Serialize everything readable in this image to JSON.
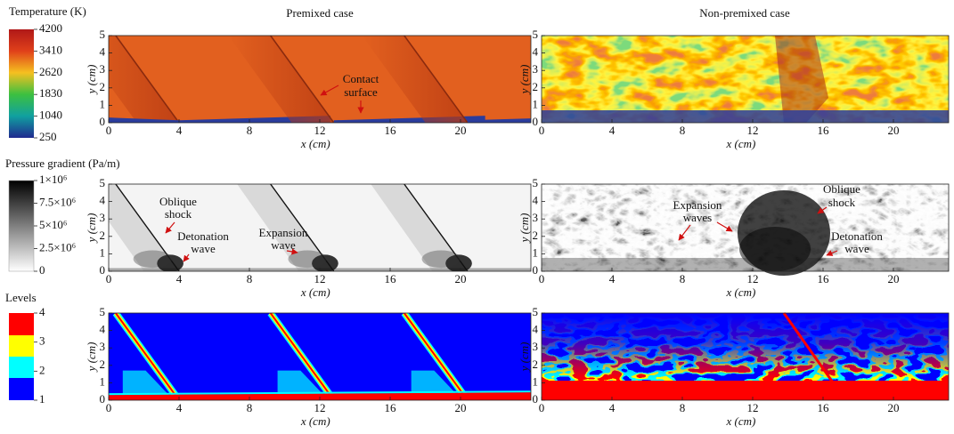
{
  "colorbars": [
    {
      "title": "Temperature (K)",
      "ticks": [
        "4200",
        "3410",
        "2620",
        "1830",
        "1040",
        "250"
      ]
    },
    {
      "title": "Pressure gradient (Pa/m)",
      "ticks": [
        "1×10⁶",
        "7.5×10⁶",
        "5×10⁶",
        "2.5×10⁶",
        "0"
      ]
    },
    {
      "title": "Levels",
      "ticks": [
        "4",
        "3",
        "2",
        "1"
      ]
    }
  ],
  "columns": [
    "Premixed case",
    "Non-premixed case"
  ],
  "x_label": "x (cm)",
  "y_label": "y (cm)",
  "xticks": [
    0,
    4,
    8,
    12,
    16,
    20
  ],
  "yticks": [
    0,
    1,
    2,
    3,
    4,
    5
  ],
  "annotations": [
    {
      "lines": [
        "Contact",
        "surface"
      ]
    },
    {
      "lines": [
        "Oblique",
        "shock"
      ]
    },
    {
      "lines": [
        "Detonation",
        "wave"
      ]
    },
    {
      "lines": [
        "Expansion",
        "wave"
      ]
    },
    {
      "lines": [
        "Expansion",
        "waves"
      ]
    },
    {
      "lines": [
        "Oblique",
        "shock"
      ]
    },
    {
      "lines": [
        "Detonation",
        "wave"
      ]
    }
  ]
}
